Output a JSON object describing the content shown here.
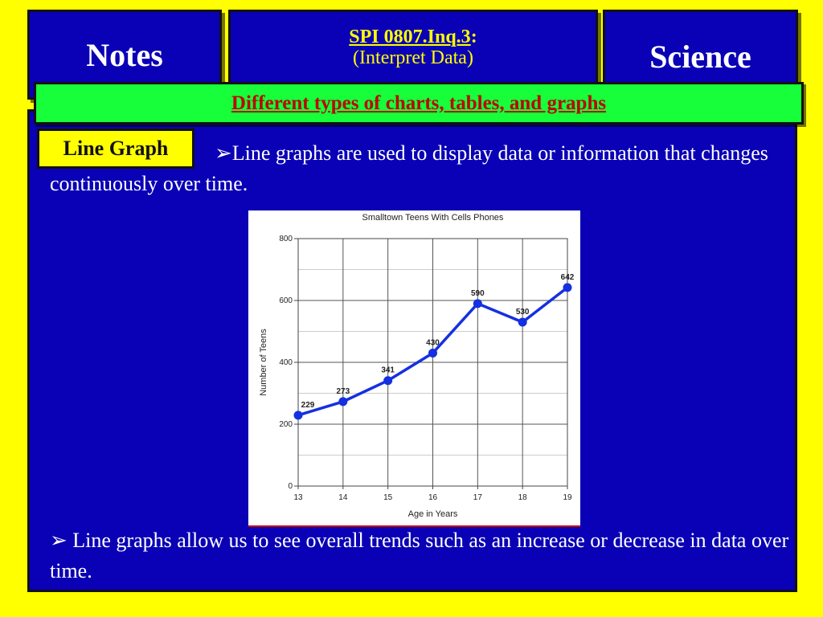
{
  "header": {
    "notes_label": "Notes",
    "spi_code": "SPI 0807.Inq.3",
    "spi_colon": ":",
    "spi_subtitle": "(Interpret Data)",
    "science_label": "Science"
  },
  "banner": {
    "text": "Different types of charts, tables, and graphs"
  },
  "section_label": "Line Graph",
  "bullets": [
    "➢Line graphs are used to display data or information that changes continuously over time.",
    "➢ Line graphs allow us to see overall trends such as an increase or decrease in data over time."
  ],
  "colors": {
    "background": "#ffff00",
    "panel": "#0a00b5",
    "banner": "#16ff3a",
    "banner_text": "#c00000",
    "series_line": "#1530e0"
  },
  "chart_data": {
    "type": "line",
    "title": "Smalltown Teens With Cells Phones",
    "xlabel": "Age in Years",
    "ylabel": "Number of Teens",
    "x": [
      13,
      14,
      15,
      16,
      17,
      18,
      19
    ],
    "values": [
      229,
      273,
      341,
      430,
      590,
      530,
      642
    ],
    "data_labels": [
      "229",
      "273",
      "341",
      "430",
      "590",
      "530",
      "642"
    ],
    "xlim": [
      13,
      19
    ],
    "ylim": [
      0,
      800
    ],
    "yticks": [
      0,
      200,
      400,
      600,
      800
    ],
    "grid": true,
    "legend": "none"
  }
}
